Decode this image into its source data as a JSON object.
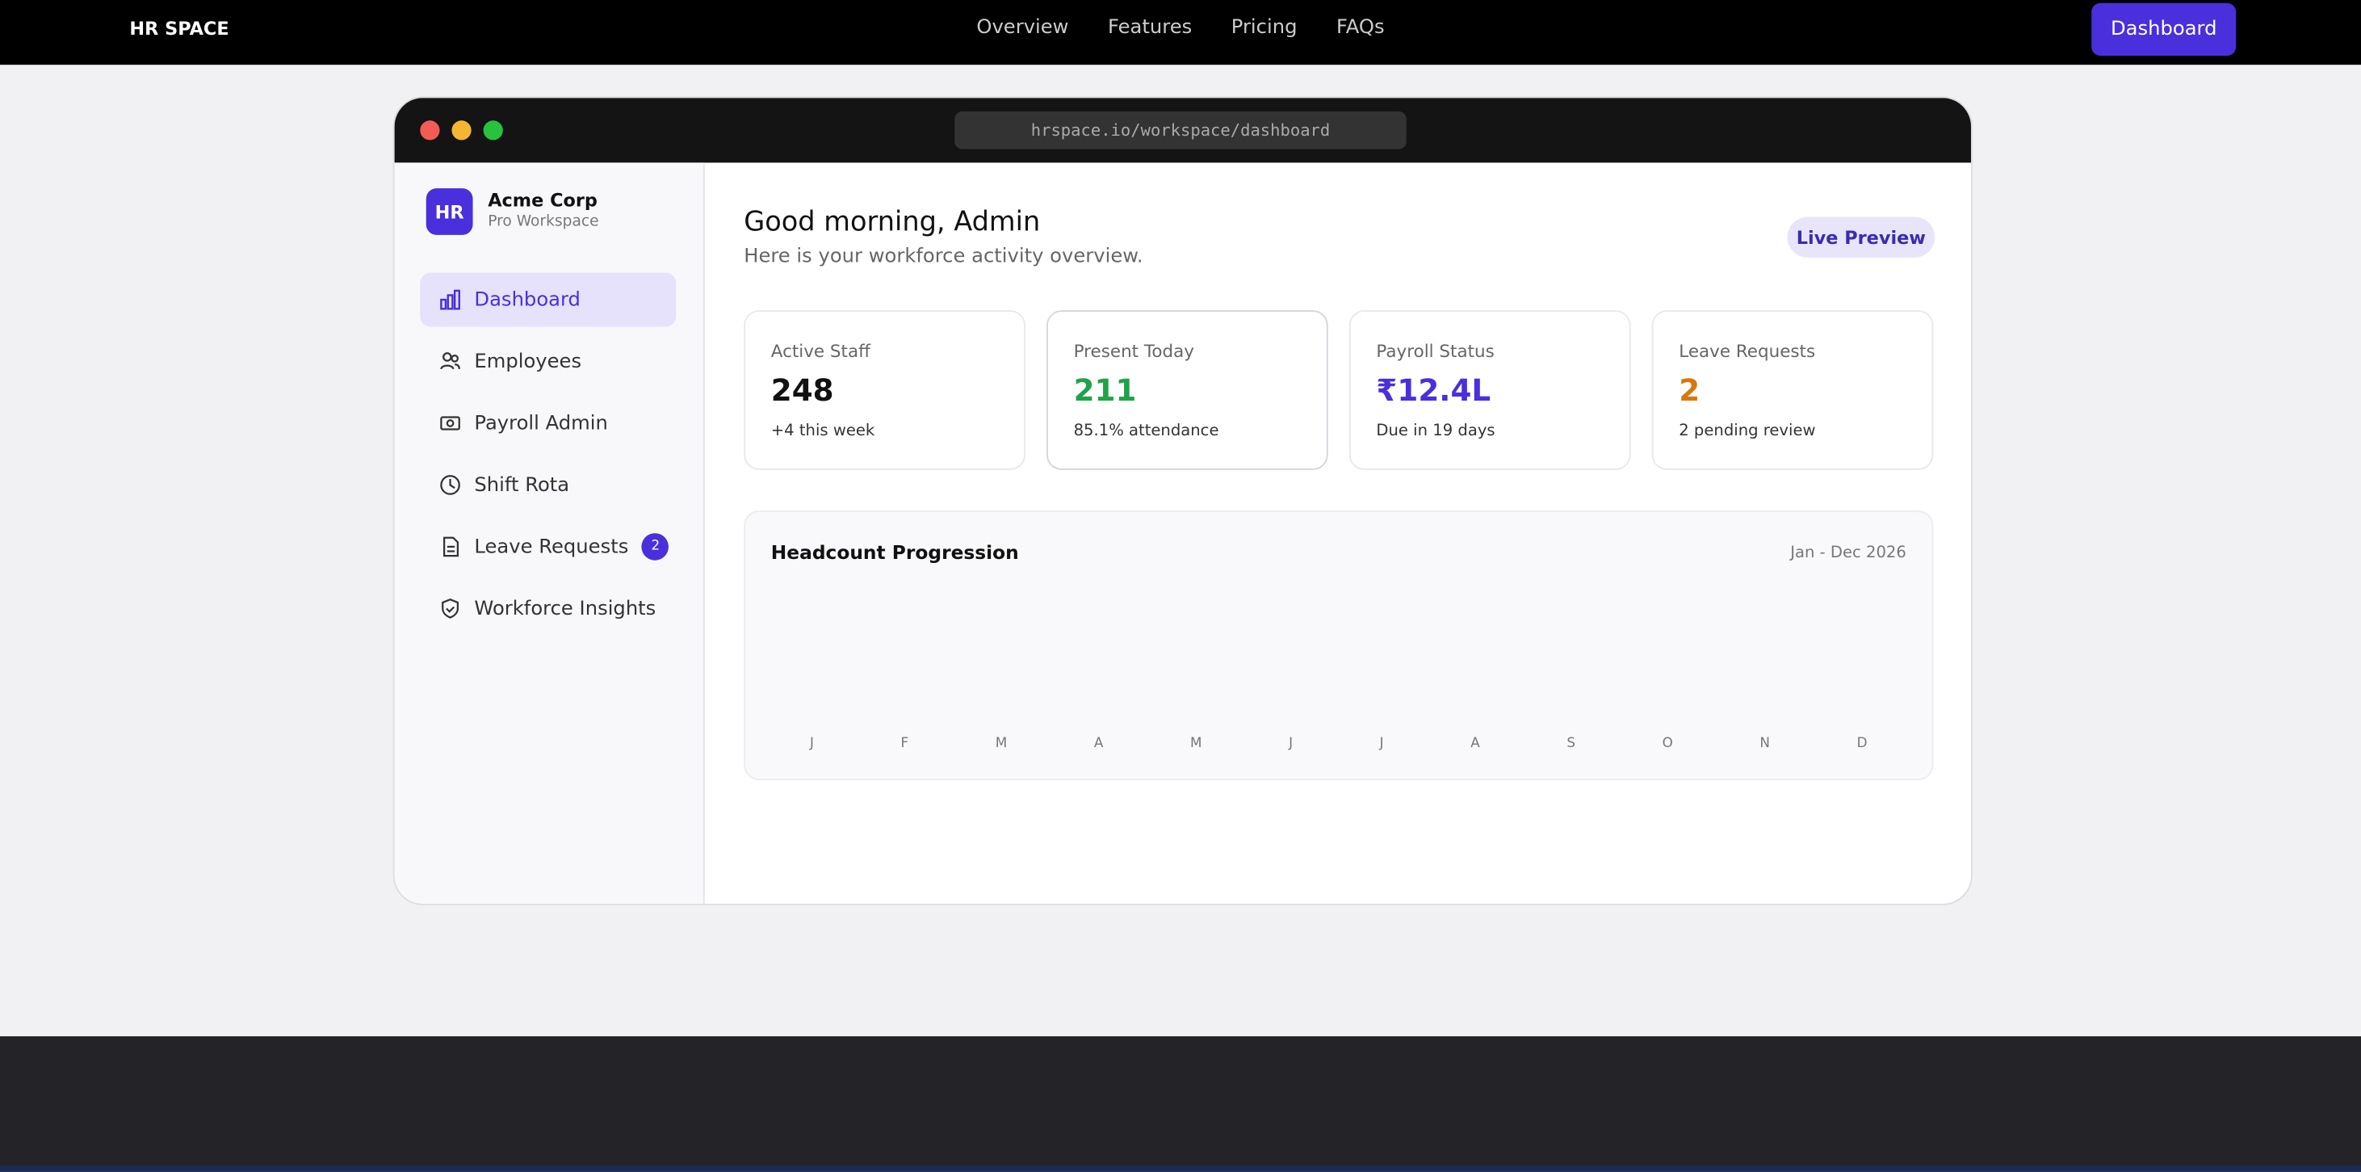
{
  "nav": {
    "brand": "HR SPACE",
    "links": [
      "Overview",
      "Features",
      "Pricing",
      "FAQs"
    ],
    "cta": "Dashboard"
  },
  "browser": {
    "url": "hrspace.io/workspace/dashboard"
  },
  "sidebar": {
    "logo": "HR",
    "org": "Acme Corp",
    "plan": "Pro Workspace",
    "items": [
      {
        "label": "Dashboard"
      },
      {
        "label": "Employees"
      },
      {
        "label": "Payroll Admin"
      },
      {
        "label": "Shift Rota"
      },
      {
        "label": "Leave Requests",
        "badge": 2
      },
      {
        "label": "Workforce Insights"
      }
    ]
  },
  "main": {
    "greeting": "Good morning, Admin",
    "subtitle": "Here is your workforce activity overview.",
    "badge": "Live Preview",
    "stats": [
      {
        "label": "Active Staff",
        "value": 248,
        "note": "+4 this week"
      },
      {
        "label": "Present Today",
        "value": 211,
        "note": "85.1% attendance"
      },
      {
        "label": "Payroll Status",
        "value": "₹12.4L",
        "note": "Due in 19 days"
      },
      {
        "label": "Leave Requests",
        "value": 2,
        "note": "2 pending review"
      }
    ],
    "chart": {
      "title": "Headcount Progression",
      "range": "Jan - Dec 2026",
      "months": [
        "J",
        "F",
        "M",
        "A",
        "M",
        "J",
        "J",
        "A",
        "S",
        "O",
        "N",
        "D"
      ]
    }
  }
}
